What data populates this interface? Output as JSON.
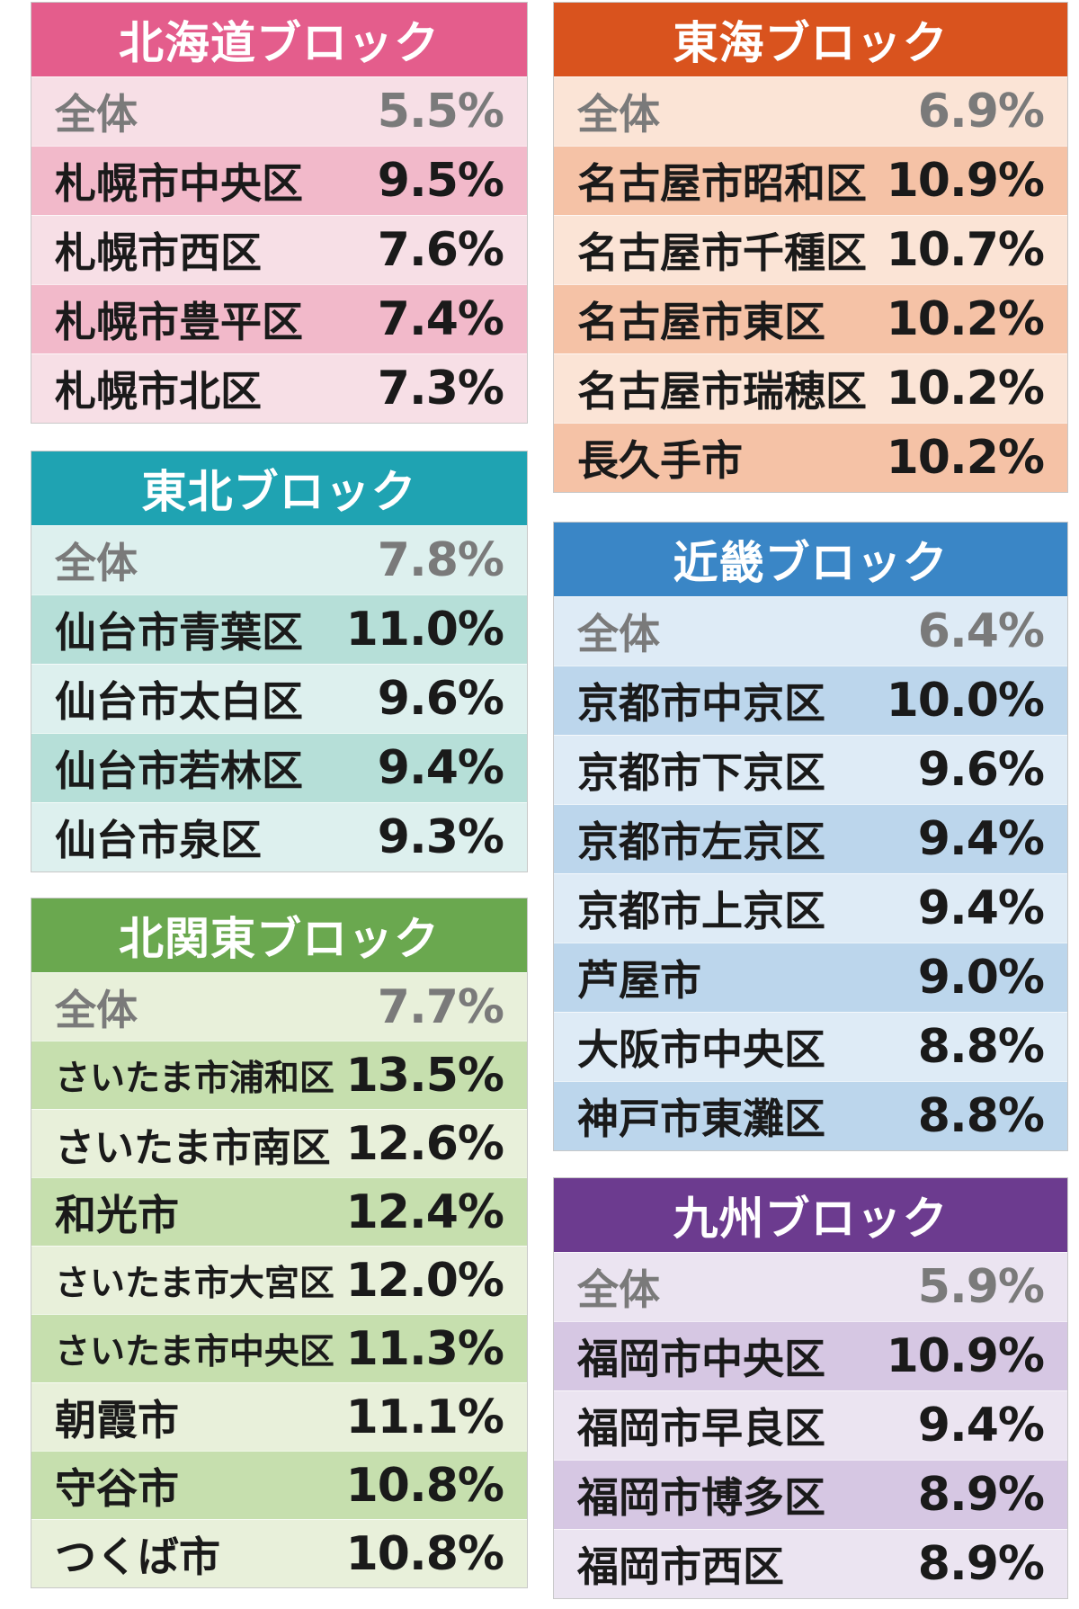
{
  "blocks": [
    {
      "id": "hokkaido",
      "title": "北海道ブロック",
      "header_color": "#e45d8c",
      "row_colors": [
        "#f7dfe6",
        "#f2b9ca"
      ],
      "rows": [
        {
          "name": "全体",
          "value": "5.5%",
          "total": true
        },
        {
          "name": "札幌市中央区",
          "value": "9.5%"
        },
        {
          "name": "札幌市西区",
          "value": "7.6%"
        },
        {
          "name": "札幌市豊平区",
          "value": "7.4%"
        },
        {
          "name": "札幌市北区",
          "value": "7.3%"
        }
      ]
    },
    {
      "id": "tohoku",
      "title": "東北ブロック",
      "header_color": "#1fa3b2",
      "row_colors": [
        "#ddf0ee",
        "#b6dfd8"
      ],
      "rows": [
        {
          "name": "全体",
          "value": "7.8%",
          "total": true
        },
        {
          "name": "仙台市青葉区",
          "value": "11.0%"
        },
        {
          "name": "仙台市太白区",
          "value": "9.6%"
        },
        {
          "name": "仙台市若林区",
          "value": "9.4%"
        },
        {
          "name": "仙台市泉区",
          "value": "9.3%"
        }
      ]
    },
    {
      "id": "kitakanto",
      "title": "北関東ブロック",
      "header_color": "#6aa84f",
      "row_colors": [
        "#e8f0da",
        "#c6dfae"
      ],
      "rows": [
        {
          "name": "全体",
          "value": "7.7%",
          "total": true
        },
        {
          "name": "さいたま市浦和区",
          "value": "13.5%"
        },
        {
          "name": "さいたま市南区",
          "value": "12.6%"
        },
        {
          "name": "和光市",
          "value": "12.4%"
        },
        {
          "name": "さいたま市大宮区",
          "value": "12.0%"
        },
        {
          "name": "さいたま市中央区",
          "value": "11.3%"
        },
        {
          "name": "朝霞市",
          "value": "11.1%"
        },
        {
          "name": "守谷市",
          "value": "10.8%"
        },
        {
          "name": "つくば市",
          "value": "10.8%"
        }
      ]
    },
    {
      "id": "tokai",
      "title": "東海ブロック",
      "header_color": "#d9531e",
      "row_colors": [
        "#fbe4d6",
        "#f5c2a6"
      ],
      "rows": [
        {
          "name": "全体",
          "value": "6.9%",
          "total": true
        },
        {
          "name": "名古屋市昭和区",
          "value": "10.9%"
        },
        {
          "name": "名古屋市千種区",
          "value": "10.7%"
        },
        {
          "name": "名古屋市東区",
          "value": "10.2%"
        },
        {
          "name": "名古屋市瑞穂区",
          "value": "10.2%"
        },
        {
          "name": "長久手市",
          "value": "10.2%"
        }
      ]
    },
    {
      "id": "kinki",
      "title": "近畿ブロック",
      "header_color": "#3a86c6",
      "row_colors": [
        "#deebf6",
        "#bcd6ec"
      ],
      "rows": [
        {
          "name": "全体",
          "value": "6.4%",
          "total": true
        },
        {
          "name": "京都市中京区",
          "value": "10.0%"
        },
        {
          "name": "京都市下京区",
          "value": "9.6%"
        },
        {
          "name": "京都市左京区",
          "value": "9.4%"
        },
        {
          "name": "京都市上京区",
          "value": "9.4%"
        },
        {
          "name": "芦屋市",
          "value": "9.0%"
        },
        {
          "name": "大阪市中央区",
          "value": "8.8%"
        },
        {
          "name": "神戸市東灘区",
          "value": "8.8%"
        }
      ]
    },
    {
      "id": "kyushu",
      "title": "九州ブロック",
      "header_color": "#6c3b8f",
      "row_colors": [
        "#ebe4f1",
        "#d6c7e3"
      ],
      "rows": [
        {
          "name": "全体",
          "value": "5.9%",
          "total": true
        },
        {
          "name": "福岡市中央区",
          "value": "10.9%"
        },
        {
          "name": "福岡市早良区",
          "value": "9.4%"
        },
        {
          "name": "福岡市博多区",
          "value": "8.9%"
        },
        {
          "name": "福岡市西区",
          "value": "8.9%"
        }
      ]
    }
  ]
}
